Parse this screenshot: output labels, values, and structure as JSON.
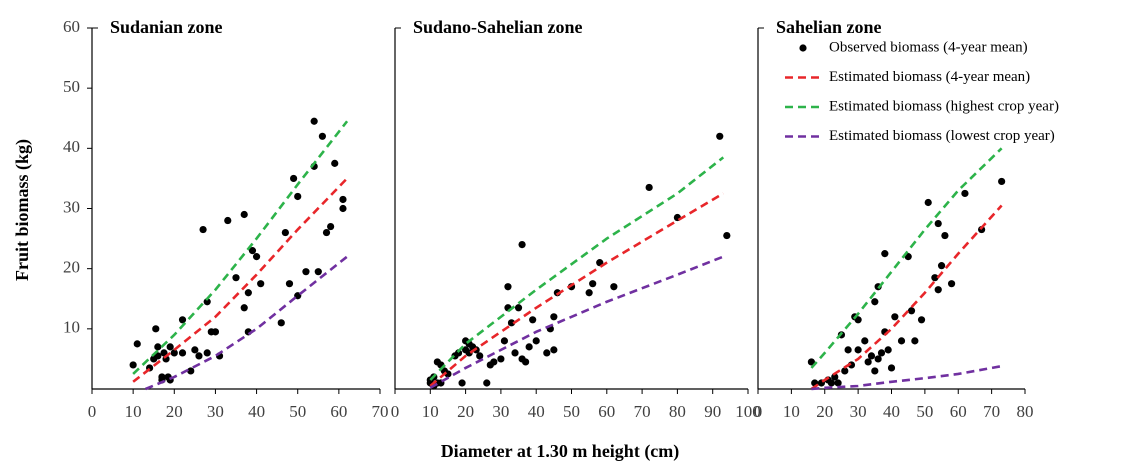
{
  "chart_data": [
    {
      "type": "scatter",
      "title": "Sudanian zone",
      "y_label": "Fruit biomass (kg)",
      "xlim": [
        0,
        70
      ],
      "xticks": [
        0,
        10,
        20,
        30,
        40,
        50,
        60,
        70
      ],
      "ylim": [
        0,
        60
      ],
      "yticks": [
        10,
        20,
        30,
        40,
        50,
        60
      ],
      "series": [
        {
          "type": "scatter",
          "color": "#000000",
          "x": [
            10,
            11,
            14,
            15,
            15.5,
            16,
            16,
            17,
            17,
            17.5,
            18,
            18.5,
            19,
            19,
            20,
            22,
            22,
            24,
            25,
            26,
            27,
            28,
            28,
            29,
            30,
            31,
            33,
            35,
            37,
            37,
            38,
            38,
            39,
            40,
            41,
            46,
            47,
            48,
            49,
            50,
            50,
            52,
            54,
            54,
            56,
            55,
            57,
            58,
            59,
            61,
            61
          ],
          "values": [
            4,
            7.5,
            3.5,
            5,
            10,
            5.5,
            7,
            2,
            1.5,
            6,
            5,
            2,
            1.5,
            7,
            6,
            11.5,
            6,
            3,
            6.5,
            5.5,
            26.5,
            14.5,
            6,
            9.5,
            9.5,
            5.5,
            28,
            18.5,
            29,
            13.5,
            16,
            9.5,
            23,
            22,
            17.5,
            11,
            26,
            17.5,
            35,
            32,
            15.5,
            19.5,
            44.5,
            37,
            42,
            19.5,
            26,
            27,
            37.5,
            31.5,
            30
          ]
        },
        {
          "type": "line",
          "style": "dashed",
          "color": "#e8262a",
          "x": [
            10,
            20,
            30,
            40,
            50,
            62
          ],
          "values": [
            1.2,
            6.5,
            12,
            19,
            26.5,
            35
          ]
        },
        {
          "type": "line",
          "style": "dashed",
          "color": "#2db34a",
          "x": [
            10,
            20,
            30,
            40,
            50,
            62
          ],
          "values": [
            2.5,
            9,
            16.5,
            25,
            34,
            44.5
          ]
        },
        {
          "type": "line",
          "style": "dashed",
          "color": "#7030a0",
          "x": [
            13,
            20,
            30,
            40,
            50,
            62
          ],
          "values": [
            0,
            2,
            5.5,
            10,
            15.5,
            22
          ]
        }
      ]
    },
    {
      "type": "scatter",
      "title": "Sudano-Sahelian zone",
      "x_label": "Diameter at 1.30 m height (cm)",
      "xlim": [
        0,
        100
      ],
      "xticks": [
        0,
        10,
        20,
        30,
        40,
        50,
        60,
        70,
        80,
        90,
        100
      ],
      "ylim": [
        0,
        60
      ],
      "series": [
        {
          "type": "scatter",
          "color": "#000000",
          "x": [
            10,
            10,
            11,
            11,
            12,
            12,
            13,
            13,
            14,
            15,
            17,
            18,
            19,
            20,
            20,
            21,
            21,
            22,
            23,
            24,
            26,
            27,
            28,
            30,
            31,
            32,
            32,
            33,
            34,
            35,
            36,
            36,
            37,
            38,
            39,
            40,
            43,
            44,
            45,
            45,
            46,
            50,
            55,
            56,
            58,
            62,
            72,
            80,
            92,
            94
          ],
          "values": [
            1,
            1.5,
            2,
            0.5,
            1,
            4.5,
            4,
            1,
            3,
            2.5,
            5.5,
            6,
            1,
            8,
            6.5,
            7.5,
            6,
            7,
            6.5,
            5.5,
            1,
            4,
            4.5,
            5,
            8,
            17,
            13.5,
            11,
            6,
            13.5,
            24,
            5,
            4.5,
            7,
            11.5,
            8,
            6,
            10,
            12,
            6.5,
            16,
            17,
            16,
            17.5,
            21,
            17,
            33.5,
            28.5,
            42,
            25.5
          ]
        },
        {
          "type": "line",
          "style": "dashed",
          "color": "#e8262a",
          "x": [
            10,
            20,
            40,
            60,
            80,
            93
          ],
          "values": [
            0.5,
            5.5,
            13.5,
            21,
            28,
            32.5
          ]
        },
        {
          "type": "line",
          "style": "dashed",
          "color": "#2db34a",
          "x": [
            10,
            20,
            40,
            60,
            80,
            93
          ],
          "values": [
            1.5,
            7.5,
            16.5,
            25,
            32.5,
            38.5
          ]
        },
        {
          "type": "line",
          "style": "dashed",
          "color": "#7030a0",
          "x": [
            10,
            20,
            40,
            60,
            80,
            93
          ],
          "values": [
            0.2,
            3.5,
            9.5,
            14.5,
            19,
            22
          ]
        }
      ]
    },
    {
      "type": "scatter",
      "title": "Sahelian zone",
      "legend": "upper right",
      "xlim": [
        0,
        80
      ],
      "xticks": [
        0,
        10,
        20,
        30,
        40,
        50,
        60,
        70,
        80
      ],
      "ylim": [
        0,
        60
      ],
      "series": [
        {
          "type": "scatter",
          "name": "Observed biomass (4-year mean)",
          "color": "#000000",
          "x": [
            16,
            17,
            19,
            21,
            22,
            23,
            24,
            25,
            26,
            27,
            28,
            29,
            30,
            30,
            32,
            33,
            34,
            35,
            35,
            36,
            36,
            37,
            38,
            38,
            39,
            40,
            41,
            43,
            45,
            46,
            47,
            49,
            51,
            53,
            54,
            54,
            55,
            56,
            58,
            62,
            67,
            73
          ],
          "values": [
            4.5,
            1,
            1,
            1.5,
            1,
            2,
            1,
            9,
            3,
            6.5,
            4,
            12,
            6.5,
            11.5,
            8,
            4.5,
            5.5,
            14.5,
            3,
            17,
            5,
            6,
            22.5,
            9.5,
            6.5,
            3.5,
            12,
            8,
            22,
            13,
            8,
            11.5,
            31,
            18.5,
            27.5,
            16.5,
            20.5,
            25.5,
            17.5,
            32.5,
            26.5,
            34.5
          ]
        },
        {
          "type": "line",
          "style": "dashed",
          "name": "Estimated biomass (4-year mean)",
          "color": "#e8262a",
          "x": [
            16,
            20,
            30,
            40,
            50,
            60,
            73
          ],
          "values": [
            0,
            1.5,
            5,
            10,
            16,
            22.5,
            30.5
          ]
        },
        {
          "type": "line",
          "style": "dashed",
          "name": "Estimated biomass (highest crop year)",
          "color": "#2db34a",
          "x": [
            16,
            20,
            30,
            40,
            50,
            60,
            73
          ],
          "values": [
            3.5,
            6,
            12.5,
            19.5,
            26.5,
            33,
            40
          ]
        },
        {
          "type": "line",
          "style": "dashed",
          "name": "Estimated biomass (lowest crop year)",
          "color": "#7030a0",
          "x": [
            16,
            20,
            30,
            40,
            50,
            60,
            73
          ],
          "values": [
            0,
            0.2,
            0.5,
            1.2,
            1.8,
            2.5,
            3.8
          ]
        }
      ]
    }
  ]
}
